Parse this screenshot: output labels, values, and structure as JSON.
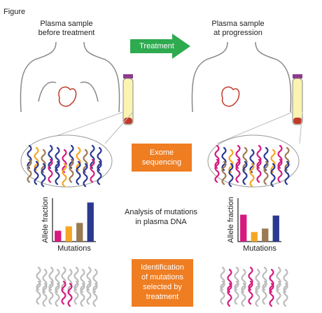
{
  "header": {
    "title": "Figure"
  },
  "labels": {
    "before": [
      "Plasma sample",
      "before treatment"
    ],
    "after": [
      "Plasma sample",
      "at progression"
    ]
  },
  "steps": {
    "treatment": "Treatment",
    "sequencing": [
      "Exome",
      "sequencing"
    ],
    "analysis": [
      "Analysis of mutations",
      "in plasma DNA"
    ],
    "identification": [
      "Identification",
      "of mutations",
      "selected by",
      "treatment"
    ]
  },
  "charts": [
    {
      "type": "bar",
      "y_label": "Allele fraction",
      "x_label": "Mutations",
      "ylim": [
        0,
        1
      ],
      "colors": [
        "#d6197f",
        "#f5a623",
        "#9b7a53",
        "#2b3990"
      ],
      "values": [
        0.25,
        0.35,
        0.43,
        0.9
      ]
    },
    {
      "type": "bar",
      "y_label": "Allele fraction",
      "x_label": "Mutations",
      "ylim": [
        0,
        1
      ],
      "colors": [
        "#d6197f",
        "#f5a623",
        "#9b7a53",
        "#2b3990"
      ],
      "values": [
        0.62,
        0.22,
        0.3,
        0.6
      ]
    }
  ]
}
